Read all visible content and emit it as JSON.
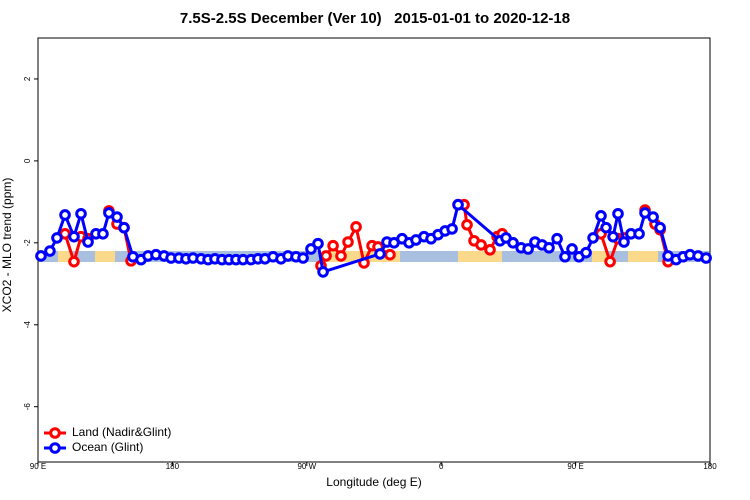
{
  "chart_data": {
    "type": "line",
    "title": "7.5S-2.5S December (Ver 10)   2015-01-01 to 2020-12-18",
    "x_label": "Longitude (deg E)",
    "y_label": "XCO2 - MLO trend (ppm)",
    "xlim": [
      90,
      540
    ],
    "ylim": [
      -7.35,
      3
    ],
    "xticks": [
      {
        "value": 90,
        "label": "90 E"
      },
      180,
      {
        "value": 270,
        "label": "90 W"
      },
      {
        "value": 360,
        "label": "0"
      },
      {
        "value": 450,
        "label": "90 E"
      },
      {
        "value": 540,
        "label": "180"
      }
    ],
    "yticks": [
      -6,
      -4,
      -2,
      0,
      2
    ],
    "legend": "bottom-left",
    "series": [
      {
        "name": "Land (Nadir&Glint)",
        "color": "#ff0000",
        "x": [
          108.1,
          114.1,
          118.8,
          123.5,
          130,
          137.5,
          142.9,
          147.6,
          152.3,
          200,
          279.5,
          282.9,
          287.6,
          292.9,
          297.6,
          303,
          308.3,
          313.7,
          317.7,
          325.7,
          350,
          371.3,
          375.3,
          377.3,
          382,
          386.7,
          392.7,
          397.4,
          400.8,
          430,
          467,
          473.1,
          478.4,
          482.4,
          490,
          496.5,
          503.2,
          506.6,
          511.9
        ],
        "values": [
          -1.78,
          -2.46,
          -1.85,
          -1.9,
          null,
          -1.22,
          -1.54,
          -1.63,
          -2.44,
          null,
          -2.56,
          -2.32,
          -2.07,
          -2.32,
          -1.98,
          -1.61,
          -2.49,
          -2.07,
          -2.1,
          -2.29,
          null,
          -1.07,
          -1.07,
          -1.56,
          -1.95,
          -2.05,
          -2.17,
          -1.85,
          -1.78,
          null,
          -1.78,
          -2.46,
          -1.9,
          -1.88,
          null,
          -1.2,
          -1.54,
          -1.68,
          -2.46
        ]
      },
      {
        "name": "Ocean (Glint)",
        "color": "#0000ff",
        "x": [
          92,
          98,
          102.7,
          108.1,
          114.1,
          118.8,
          123.5,
          128.8,
          133.5,
          137.5,
          142.9,
          147.6,
          153.6,
          159,
          163.7,
          169,
          174.4,
          179.1,
          184.4,
          189.1,
          193.8,
          199.2,
          203.9,
          208.5,
          213.2,
          217.9,
          222.6,
          227.3,
          232.6,
          237.3,
          242,
          247.4,
          252.7,
          257.4,
          262.8,
          267.5,
          272.8,
          277.5,
          280.9,
          319,
          323.7,
          328.4,
          333.8,
          338.5,
          343.1,
          348.5,
          353.2,
          357.9,
          362.6,
          367.3,
          371.3,
          399.4,
          403.4,
          408.1,
          413.5,
          418.2,
          422.8,
          427.5,
          432.2,
          437.6,
          442.9,
          447.6,
          452.3,
          457,
          461.7,
          467,
          470.4,
          475.1,
          478.4,
          482.4,
          487.1,
          492.5,
          496.5,
          501.9,
          506.6,
          511.9,
          517.3,
          522,
          526.6,
          532,
          537.4
        ],
        "values": [
          -2.32,
          -2.2,
          -1.88,
          -1.32,
          -1.85,
          -1.29,
          -1.98,
          -1.78,
          -1.78,
          -1.27,
          -1.37,
          -1.63,
          -2.34,
          -2.41,
          -2.32,
          -2.29,
          -2.32,
          -2.37,
          -2.37,
          -2.39,
          -2.37,
          -2.39,
          -2.41,
          -2.39,
          -2.41,
          -2.41,
          -2.41,
          -2.41,
          -2.41,
          -2.39,
          -2.39,
          -2.34,
          -2.39,
          -2.32,
          -2.34,
          -2.37,
          -2.15,
          -2.02,
          -2.71,
          -2.27,
          -1.98,
          -2.0,
          -1.9,
          -2.0,
          -1.93,
          -1.85,
          -1.9,
          -1.8,
          -1.71,
          -1.66,
          -1.07,
          -1.95,
          -1.88,
          -2.0,
          -2.12,
          -2.15,
          -1.98,
          -2.05,
          -2.12,
          -1.9,
          -2.34,
          -2.15,
          -2.34,
          -2.24,
          -1.88,
          -1.34,
          -1.63,
          -1.85,
          -1.29,
          -1.98,
          -1.78,
          -1.78,
          -1.27,
          -1.37,
          -1.63,
          -2.32,
          -2.41,
          -2.34,
          -2.29,
          -2.32,
          -2.37
        ]
      }
    ]
  }
}
